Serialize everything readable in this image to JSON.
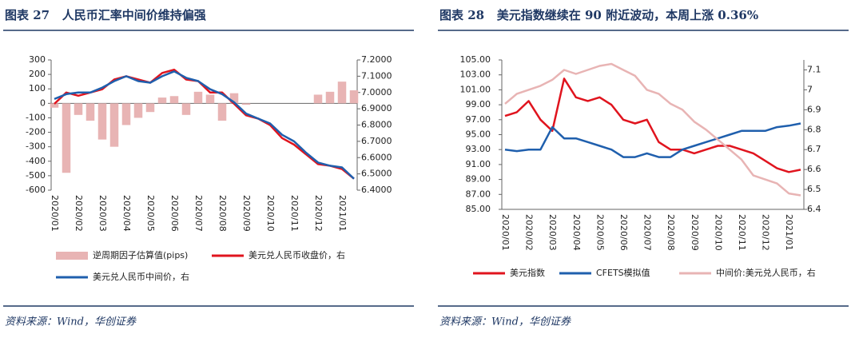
{
  "chart_data": [
    {
      "type": "combo",
      "title": "图表 27   人民币汇率中间价维持偏强",
      "source": "资料来源：Wind，华创证券",
      "categories": [
        "2020/01",
        null,
        "2020/02",
        null,
        "2020/03",
        null,
        "2020/04",
        null,
        "2020/05",
        null,
        "2020/06",
        null,
        "2020/07",
        null,
        "2020/08",
        null,
        "2020/09",
        null,
        "2020/10",
        null,
        "2020/11",
        null,
        "2020/12",
        null,
        "2021/01",
        null
      ],
      "ylim": [
        -600,
        300
      ],
      "yticks": [
        -600,
        -500,
        -400,
        -300,
        -200,
        -100,
        0,
        100,
        200,
        300
      ],
      "y2lim": [
        6.4,
        7.2
      ],
      "y2ticks": [
        {
          "value": 6.4,
          "label": "6.4000"
        },
        {
          "value": 6.5,
          "label": "6.5000"
        },
        {
          "value": 6.6,
          "label": "6.6000"
        },
        {
          "value": 6.7,
          "label": "6.7000"
        },
        {
          "value": 6.8,
          "label": "6.8000"
        },
        {
          "value": 6.9,
          "label": "6.9000"
        },
        {
          "value": 7.0,
          "label": "7.0000"
        },
        {
          "value": 7.1,
          "label": "7.1000"
        },
        {
          "value": 7.2,
          "label": "7.2000"
        }
      ],
      "legend": "bottom",
      "grid": false,
      "series": [
        {
          "name": "逆周期因子估算值(pips)",
          "type": "bar",
          "axis": "y",
          "color": "#e8b4b4",
          "values": [
            -30,
            -480,
            -80,
            -120,
            -250,
            -300,
            -150,
            -100,
            -60,
            40,
            50,
            -80,
            80,
            60,
            -120,
            70,
            -10,
            0,
            0,
            0,
            0,
            0,
            60,
            80,
            150,
            90
          ]
        },
        {
          "name": "美元兑人民币收盘价，右",
          "type": "line",
          "axis": "y2",
          "color": "#e0141e",
          "values": [
            6.93,
            7.0,
            6.98,
            7.0,
            7.02,
            7.08,
            7.1,
            7.08,
            7.06,
            7.12,
            7.14,
            7.08,
            7.07,
            7.0,
            7.0,
            6.93,
            6.86,
            6.84,
            6.8,
            6.72,
            6.68,
            6.62,
            6.56,
            6.55,
            6.53,
            6.47
          ]
        },
        {
          "name": "美元兑人民币中间价，右",
          "type": "line",
          "axis": "y2",
          "color": "#1f5fad",
          "values": [
            6.96,
            6.99,
            7.0,
            7.0,
            7.03,
            7.07,
            7.1,
            7.07,
            7.06,
            7.1,
            7.13,
            7.09,
            7.07,
            7.02,
            6.99,
            6.94,
            6.87,
            6.84,
            6.81,
            6.74,
            6.7,
            6.63,
            6.57,
            6.55,
            6.54,
            6.47
          ]
        }
      ]
    },
    {
      "type": "line",
      "title": "图表 28   美元指数继续在 90 附近波动，本周上涨 0.36%",
      "source": "资料来源：Wind，华创证券",
      "categories": [
        "2020/01",
        null,
        "2020/02",
        null,
        "2020/03",
        null,
        "2020/04",
        null,
        "2020/05",
        null,
        "2020/06",
        null,
        "2020/07",
        null,
        "2020/08",
        null,
        "2020/09",
        null,
        "2020/10",
        null,
        "2020/11",
        null,
        "2020/12",
        null,
        "2021/01",
        null
      ],
      "ylim": [
        85,
        105
      ],
      "yticks": [
        {
          "value": 85,
          "label": "85.00"
        },
        {
          "value": 87,
          "label": "87.00"
        },
        {
          "value": 89,
          "label": "89.00"
        },
        {
          "value": 91,
          "label": "91.00"
        },
        {
          "value": 93,
          "label": "93.00"
        },
        {
          "value": 95,
          "label": "95.00"
        },
        {
          "value": 97,
          "label": "97.00"
        },
        {
          "value": 99,
          "label": "99.00"
        },
        {
          "value": 101,
          "label": "101.00"
        },
        {
          "value": 103,
          "label": "103.00"
        },
        {
          "value": 105,
          "label": "105.00"
        }
      ],
      "y2lim": [
        6.4,
        7.15
      ],
      "y2ticks": [
        6.4,
        6.5,
        6.6,
        6.7,
        6.8,
        6.9,
        7,
        7.1
      ],
      "legend": "bottom",
      "grid": false,
      "series": [
        {
          "name": "美元指数",
          "type": "line",
          "axis": "y",
          "color": "#e0141e",
          "values": [
            97.5,
            98,
            99.5,
            97,
            95.5,
            102.5,
            100,
            99.5,
            100,
            99,
            97,
            96.5,
            97,
            94,
            93,
            93,
            92.5,
            93,
            93.5,
            93.5,
            93,
            92.5,
            91.5,
            90.5,
            90,
            90.3
          ]
        },
        {
          "name": "CFETS模拟值",
          "type": "line",
          "axis": "y",
          "color": "#1f5fad",
          "values": [
            93,
            92.8,
            93,
            93,
            96,
            94.5,
            94.5,
            94,
            93.5,
            93,
            92,
            92,
            92.5,
            92,
            92,
            93,
            93.5,
            94,
            94.5,
            95,
            95.5,
            95.5,
            95.5,
            96,
            96.2,
            96.5
          ]
        },
        {
          "name": "中间价:美元兑人民币，右",
          "type": "line",
          "axis": "y2",
          "color": "#e8b4b4",
          "values": [
            6.93,
            6.98,
            7.0,
            7.02,
            7.05,
            7.1,
            7.08,
            7.1,
            7.12,
            7.13,
            7.1,
            7.07,
            7.0,
            6.98,
            6.93,
            6.9,
            6.84,
            6.8,
            6.75,
            6.7,
            6.65,
            6.57,
            6.55,
            6.53,
            6.48,
            6.47
          ]
        }
      ]
    }
  ]
}
